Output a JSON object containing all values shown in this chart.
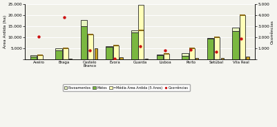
{
  "categories": [
    "Aveiro",
    "Braga",
    "Castelo\nBranco",
    "Évora",
    "Guarda",
    "Lisboa",
    "Porto",
    "Setúbal",
    "Vila Real"
  ],
  "povoamentos": [
    500,
    800,
    2800,
    300,
    1000,
    600,
    1200,
    500,
    1500
  ],
  "matos": [
    1400,
    4200,
    15000,
    5700,
    12200,
    1800,
    1700,
    9300,
    12800
  ],
  "media_area": [
    2000,
    5200,
    11200,
    6300,
    13200,
    2600,
    5000,
    10000,
    20000
  ],
  "media_line": [
    2000,
    5200,
    11200,
    6300,
    13200,
    2600,
    5000,
    10000,
    20000
  ],
  "small_bar": [
    200,
    400,
    5200,
    1000,
    400,
    200,
    600,
    800,
    1200
  ],
  "guarda_tall": 24800,
  "ocorrencias": [
    2100,
    3800,
    800,
    100,
    1200,
    800,
    900,
    700,
    1900
  ],
  "ylim_left": [
    0,
    25000
  ],
  "ylim_right": [
    0,
    5000
  ],
  "yticks_left": [
    0,
    5000,
    10000,
    15000,
    20000,
    25000
  ],
  "yticks_right": [
    0,
    1000,
    2000,
    3000,
    4000,
    5000
  ],
  "ylabel_left": "Área Ardida (ha)",
  "ylabel_right": "Ocorrências",
  "color_pov": "#e8f5c0",
  "color_matos": "#7ab840",
  "color_media_fill": "#ffffb8",
  "color_media_line": "#8B6914",
  "color_small": "#c8a020",
  "color_ocorr": "#cc1111",
  "fig_bg": "#f5f5f0",
  "ax_bg": "#f0f0e8"
}
